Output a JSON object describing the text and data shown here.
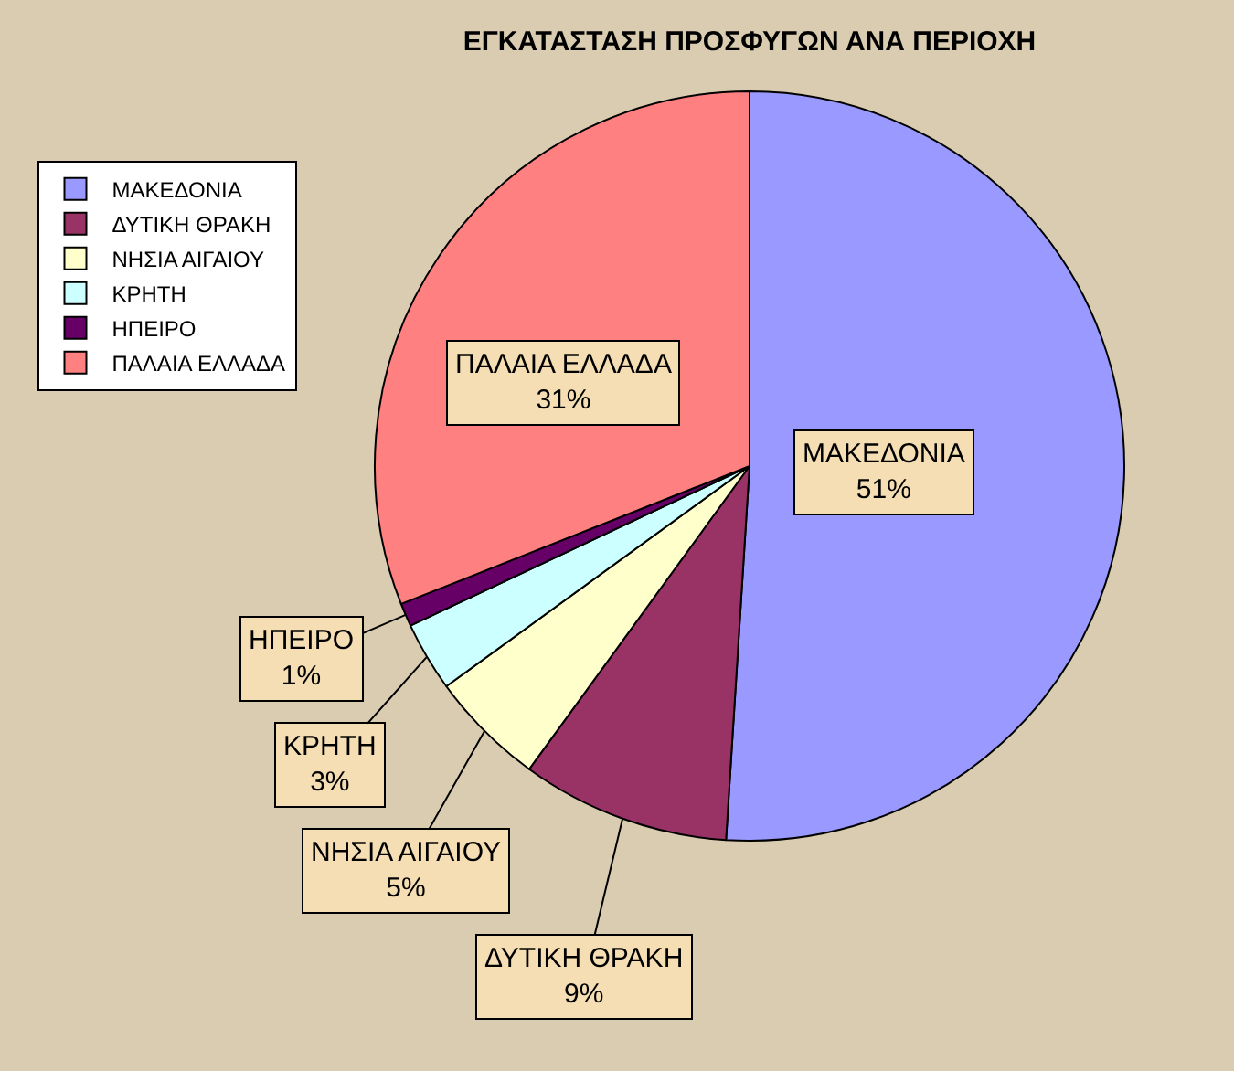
{
  "chart_data": {
    "type": "pie",
    "title": "ΕΓΚΑΤΑΣΤΑΣΗ ΠΡΟΣΦΥΓΩΝ ΑΝΑ ΠΕΡΙΟΧΗ",
    "categories": [
      "ΜΑΚΕΔΟΝΙΑ",
      "ΔΥΤΙΚΗ ΘΡΑΚΗ",
      "ΝΗΣΙΑ ΑΙΓΑΙΟΥ",
      "ΚΡΗΤΗ",
      "ΗΠΕΙΡΟ",
      "ΠΑΛΑΙΑ ΕΛΛΑΔΑ"
    ],
    "values": [
      51,
      9,
      5,
      3,
      1,
      31
    ],
    "value_labels": [
      "51%",
      "9%",
      "5%",
      "3%",
      "1%",
      "31%"
    ],
    "colors": [
      "#9999ff",
      "#993366",
      "#ffffcc",
      "#ccffff",
      "#660066",
      "#ff8080"
    ],
    "legend": "top left"
  }
}
